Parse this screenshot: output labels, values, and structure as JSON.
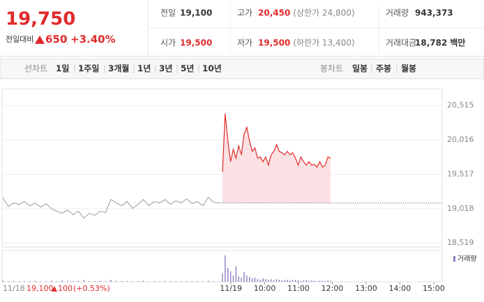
{
  "header": {
    "price": "19,750",
    "change_label": "전일대비",
    "change": "650",
    "rate": "+3.40%",
    "cells": [
      [
        {
          "label": "전일",
          "value": "19,100"
        },
        {
          "label": "고가",
          "value": "20,450",
          "note": "(상한가 24,800)"
        },
        {
          "label": "거래량",
          "value": "943,373"
        }
      ],
      [
        {
          "label": "시가",
          "value": "19,500"
        },
        {
          "label": "저가",
          "value": "19,500",
          "note": "(하한가 13,400)"
        },
        {
          "label": "거래대금",
          "value": "18,782",
          "unit": "백만"
        }
      ]
    ]
  },
  "tabs": {
    "line_label": "선차트",
    "line": [
      "1일",
      "1주일",
      "3개월",
      "1년",
      "3년",
      "5년",
      "10년"
    ],
    "candle_label": "봉차트",
    "candle": [
      "일봉",
      "주봉",
      "월봉"
    ]
  },
  "footer": {
    "date": "11/18",
    "price": "19,100",
    "change": "100",
    "rate": "(+0.53%)"
  },
  "chart_data": {
    "type": "line",
    "baseline": 19100,
    "ylim": [
      18460,
      20755
    ],
    "yticks": [
      {
        "value": 20515,
        "label": "20,515"
      },
      {
        "value": 20016,
        "label": "20,016"
      },
      {
        "value": 19517,
        "label": "19,517"
      },
      {
        "value": 19018,
        "label": "19,018"
      },
      {
        "value": 18519,
        "label": "18,519"
      }
    ],
    "xlim": [
      2.25,
      15.25
    ],
    "xticks": [
      {
        "value": 9,
        "label": "11/19"
      },
      {
        "value": 10,
        "label": "10:00"
      },
      {
        "value": 11,
        "label": "11:00"
      },
      {
        "value": 12,
        "label": "12:00"
      },
      {
        "value": 13,
        "label": "13:00"
      },
      {
        "value": 14,
        "label": "14:00"
      },
      {
        "value": 15,
        "label": "15:00"
      }
    ],
    "grid": true,
    "volume_label": "거래량",
    "volume_color": "#8e7cc3",
    "vlim": [
      0,
      40000
    ],
    "series": [
      {
        "color": "#aaaaaa",
        "x": [
          2.25,
          2.41,
          2.57,
          2.73,
          2.89,
          3.05,
          3.21,
          3.37,
          3.53,
          3.69,
          3.85,
          4.01,
          4.17,
          4.33,
          4.49,
          4.65,
          4.81,
          4.97,
          5.13,
          5.29,
          5.45,
          5.61,
          5.77,
          5.93,
          6.09,
          6.25,
          6.41,
          6.57,
          6.73,
          6.89,
          7.05,
          7.21,
          7.37,
          7.53,
          7.69,
          7.85,
          8.01,
          8.17,
          8.33,
          8.49,
          8.65
        ],
        "values": [
          19180,
          19050,
          19100,
          19080,
          19120,
          19060,
          19100,
          19040,
          19090,
          19020,
          18980,
          18950,
          19000,
          18930,
          18980,
          18880,
          18950,
          18920,
          18980,
          18960,
          19150,
          19100,
          19060,
          19120,
          19020,
          19080,
          19150,
          19060,
          19120,
          19100,
          19150,
          19080,
          19130,
          19100,
          19160,
          19090,
          19120,
          19060,
          19180,
          19110,
          19100
        ],
        "volume": [
          2000,
          1000,
          1500,
          800,
          1200,
          900,
          1300,
          700,
          1100,
          1600,
          900,
          2000,
          1200,
          800,
          1400,
          2500,
          1000,
          900,
          1200,
          800,
          3000,
          1500,
          1000,
          1200,
          900,
          1100,
          1500,
          800,
          1000,
          700,
          1200,
          900,
          1000,
          800,
          1300,
          900,
          1000,
          700,
          1500,
          1000,
          800
        ]
      },
      {
        "color": "#e12a2a",
        "fill": "#fbe1e3",
        "x": [
          8.75,
          8.83,
          8.91,
          8.99,
          9.07,
          9.15,
          9.23,
          9.31,
          9.39,
          9.47,
          9.55,
          9.63,
          9.71,
          9.79,
          9.87,
          9.95,
          10.03,
          10.11,
          10.19,
          10.27,
          10.35,
          10.43,
          10.51,
          10.59,
          10.67,
          10.75,
          10.83,
          10.91,
          10.99,
          11.07,
          11.15,
          11.23,
          11.31,
          11.39,
          11.47,
          11.55,
          11.63,
          11.71,
          11.79,
          11.87,
          11.95
        ],
        "values": [
          19550,
          20400,
          20000,
          19700,
          19880,
          19750,
          19930,
          19800,
          20100,
          20200,
          20000,
          19850,
          19900,
          19750,
          19770,
          19700,
          19770,
          19650,
          19800,
          19850,
          19950,
          19850,
          19830,
          19800,
          19850,
          19800,
          19830,
          19750,
          19650,
          19770,
          19700,
          19650,
          19700,
          19650,
          19660,
          19620,
          19700,
          19620,
          19650,
          19770,
          19750
        ],
        "volume": [
          12000,
          38000,
          20000,
          15000,
          9000,
          22000,
          8000,
          6000,
          14000,
          9000,
          7000,
          5000,
          6000,
          4000,
          3000,
          5000,
          4000,
          3000,
          3500,
          2500,
          4000,
          3000,
          2000,
          2500,
          3000,
          2000,
          2500,
          3000,
          2000,
          1500,
          2000,
          2500,
          1500,
          2000,
          1500,
          1200,
          1800,
          1500,
          1000,
          2000,
          1500
        ]
      }
    ]
  }
}
